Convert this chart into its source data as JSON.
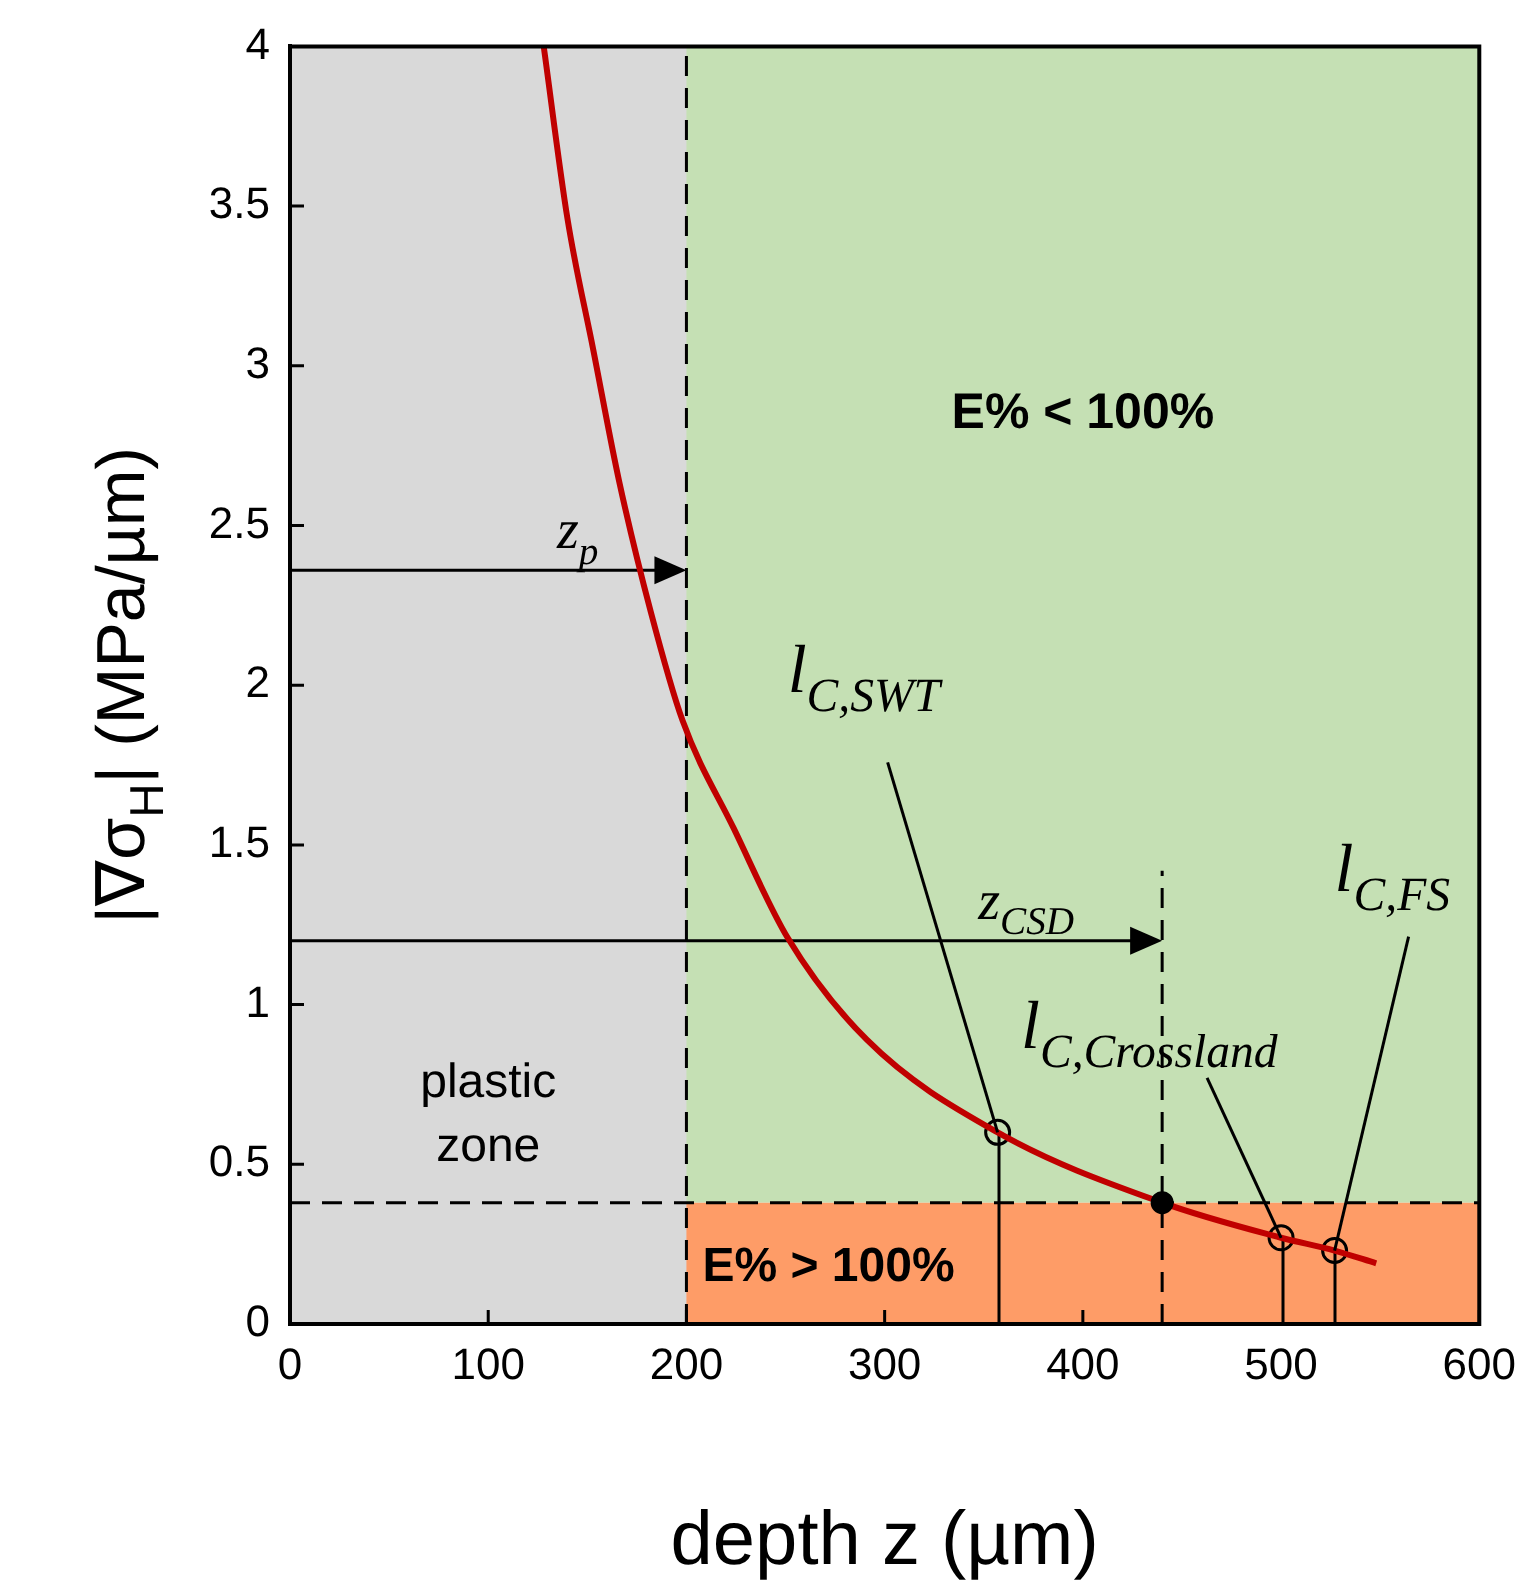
{
  "chart_data": {
    "type": "line",
    "xlabel": "depth z (µm)",
    "ylabel": "|∇σ$_{H}$| (MPa/µm)",
    "xlim": [
      0,
      600
    ],
    "xticks": [
      0,
      100,
      200,
      300,
      400,
      500,
      600
    ],
    "ylim": [
      0,
      4
    ],
    "yticks": [
      0,
      0.5,
      1,
      1.5,
      2,
      2.5,
      3,
      3.5,
      4
    ],
    "grid": false,
    "legend": false,
    "series": [
      {
        "type": "line",
        "color": "#c00000",
        "x": [
          128,
          140,
          153,
          166,
          182,
          198,
          224,
          251,
          291,
          357,
          440,
          500,
          527,
          548
        ],
        "values": [
          4,
          3.46,
          3.05,
          2.64,
          2.23,
          1.89,
          1.55,
          1.21,
          0.89,
          0.6,
          0.38,
          0.27,
          0.23,
          0.19
        ]
      },
      {
        "type": "lollipop",
        "color": "#000000",
        "x": [
          357,
          500,
          527
        ],
        "values": [
          0.6,
          0.27,
          0.23
        ]
      },
      {
        "type": "scatter",
        "color": "#000000",
        "x": [
          440
        ],
        "values": [
          0.38
        ]
      }
    ],
    "bands": [
      {
        "axis": "y",
        "from": 0.38,
        "to": 4,
        "label": "E% < 100%",
        "color": "#c5e0b4"
      },
      {
        "axis": "y",
        "from": 0,
        "to": 0.38,
        "label": "E% > 100%",
        "color": "#fe9c67"
      },
      {
        "axis": "x",
        "from": 0,
        "to": 200,
        "label": "plastic zone",
        "color": "#d9d9d9"
      }
    ],
    "ref_lines": [
      {
        "axis": "x",
        "value": 200,
        "label": "z$_{p}$",
        "color": "#000000",
        "line_style": "dashed"
      },
      {
        "axis": "x",
        "value": 440,
        "label": "z$_{CSD}$",
        "color": "#000000",
        "line_style": "dashed"
      },
      {
        "axis": "y",
        "value": 0.38,
        "color": "#000000",
        "line_style": "dashed"
      }
    ],
    "annotations": [
      {
        "text": "l$_{C,SWT}$",
        "x": 357,
        "y": 0.6
      },
      {
        "text": "l$_{C,Crossland}$",
        "x": 500,
        "y": 0.27
      },
      {
        "text": "l$_{C,FS}$",
        "x": 527,
        "y": 0.23
      }
    ]
  }
}
